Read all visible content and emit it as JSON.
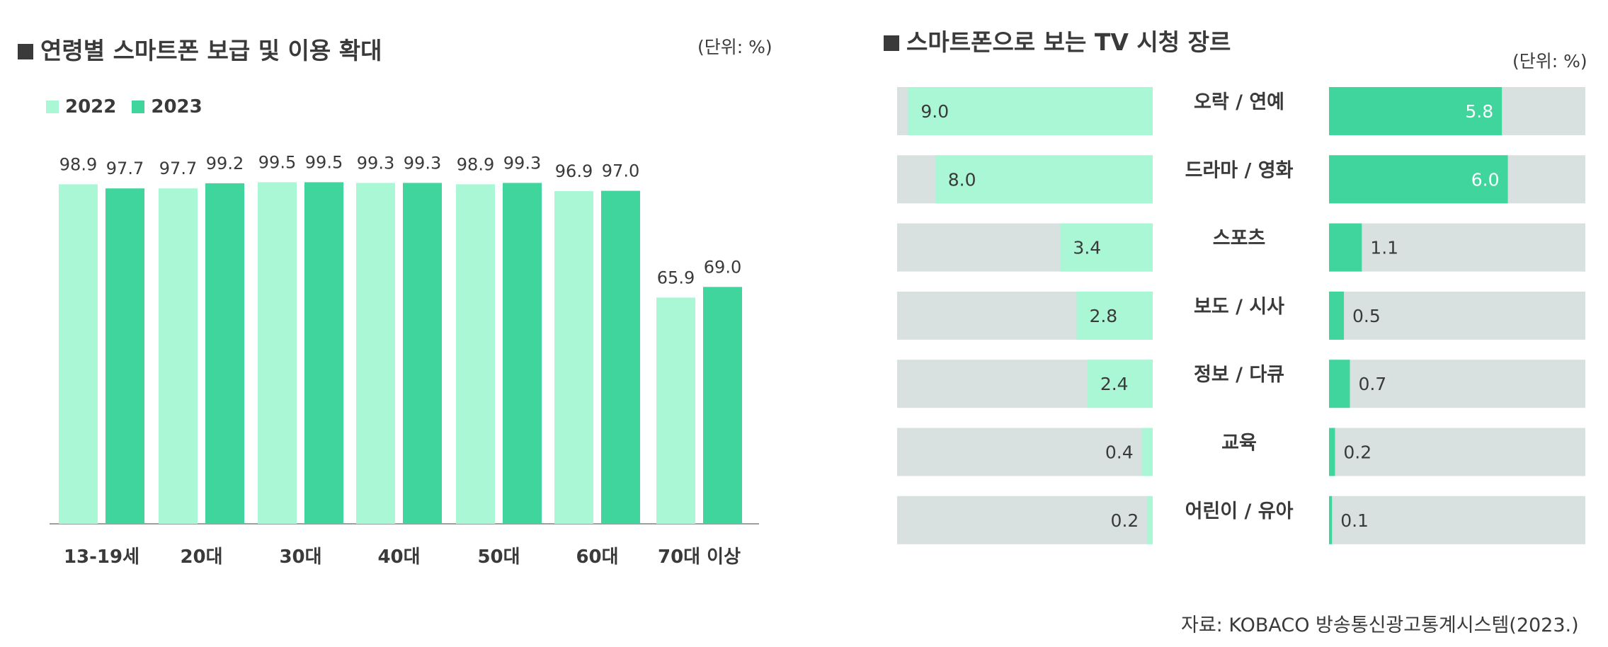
{
  "colors": {
    "c2022": "#aaf7d6",
    "c2023": "#40d59d",
    "track": "#d8e0e0",
    "text": "#3a3a3a"
  },
  "left_panel": {
    "title": "연령별 스마트폰 보급 및 이용 확대",
    "unit": "(단위: %)"
  },
  "right_panel": {
    "title": "스마트폰으로 보는 TV 시청 장르",
    "unit": "(단위: %)"
  },
  "source": "자료: KOBACO 방송통신광고통계시스템(2023.)",
  "chart_data": [
    {
      "type": "bar",
      "title": "연령별 스마트폰 보급 및 이용 확대",
      "unit": "(단위: %)",
      "categories": [
        "13-19세",
        "20대",
        "30대",
        "40대",
        "50대",
        "60대",
        "70대 이상"
      ],
      "series": [
        {
          "name": "2022",
          "values": [
            98.9,
            97.7,
            99.5,
            99.3,
            98.9,
            96.9,
            65.9
          ],
          "color": "#aaf7d6"
        },
        {
          "name": "2023",
          "values": [
            97.7,
            99.2,
            99.5,
            99.3,
            99.3,
            97.0,
            69.0
          ],
          "color": "#40d59d"
        }
      ],
      "ylim": [
        0,
        100
      ],
      "grid": false,
      "legend": "top-left"
    },
    {
      "type": "bar",
      "orientation": "horizontal",
      "title": "스마트폰으로 보는 TV 시청 장르",
      "unit": "(단위: %)",
      "categories": [
        "오락 / 연예",
        "드라마 / 영화",
        "스포츠",
        "보도 / 시사",
        "정보 / 다큐",
        "교육",
        "어린이 / 유아"
      ],
      "series": [
        {
          "values": [
            9.0,
            8.0,
            3.4,
            2.8,
            2.4,
            0.4,
            0.2
          ],
          "color": "#aaf7d6",
          "direction": "right-to-left",
          "max": 9.4
        },
        {
          "values": [
            5.8,
            6.0,
            1.1,
            0.5,
            0.7,
            0.2,
            0.1
          ],
          "color": "#40d59d",
          "direction": "left-to-right",
          "max": 8.6
        }
      ]
    }
  ]
}
